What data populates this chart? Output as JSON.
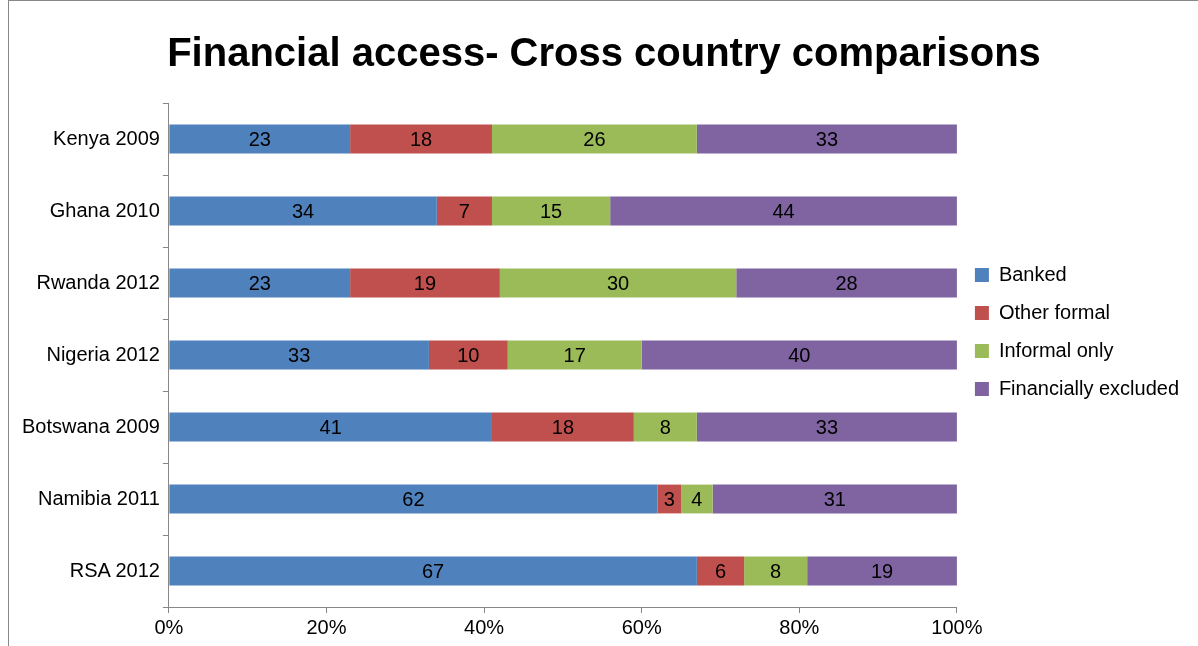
{
  "chart_data": {
    "type": "bar",
    "title": "Financial access- Cross country comparisons",
    "orientation": "horizontal",
    "stacked": true,
    "categories": [
      "Kenya 2009",
      "Ghana 2010",
      "Rwanda 2012",
      "Nigeria 2012",
      "Botswana 2009",
      "Namibia 2011",
      "RSA 2012"
    ],
    "series": [
      {
        "name": "Banked",
        "color": "#4f81bd",
        "values": [
          23,
          34,
          23,
          33,
          41,
          62,
          67
        ]
      },
      {
        "name": "Other formal",
        "color": "#c0504d",
        "values": [
          18,
          7,
          19,
          10,
          18,
          3,
          6
        ]
      },
      {
        "name": "Informal only",
        "color": "#9bbb59",
        "values": [
          26,
          15,
          30,
          17,
          8,
          4,
          8
        ]
      },
      {
        "name": "Financially excluded",
        "color": "#8064a2",
        "values": [
          33,
          44,
          28,
          40,
          33,
          31,
          19
        ]
      }
    ],
    "xlim": [
      0,
      100
    ],
    "xticks": [
      {
        "value": 0,
        "label": "0%"
      },
      {
        "value": 20,
        "label": "20%"
      },
      {
        "value": 40,
        "label": "40%"
      },
      {
        "value": 60,
        "label": "60%"
      },
      {
        "value": 80,
        "label": "80%"
      },
      {
        "value": 100,
        "label": "100%"
      }
    ],
    "grid": false,
    "legend": "right",
    "data_labels": true
  }
}
